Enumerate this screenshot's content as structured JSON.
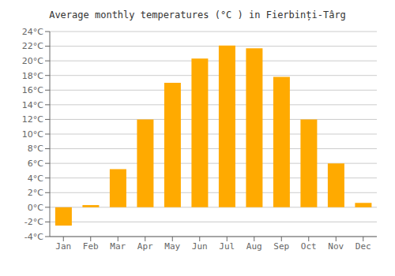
{
  "chart_data": {
    "type": "bar",
    "title": "Average monthly temperatures (°C ) in Fierbinți-Târg",
    "categories": [
      "Jan",
      "Feb",
      "Mar",
      "Apr",
      "May",
      "Jun",
      "Jul",
      "Aug",
      "Sep",
      "Oct",
      "Nov",
      "Dec"
    ],
    "values": [
      -2.5,
      0.3,
      5.2,
      12.0,
      17.0,
      20.3,
      22.1,
      21.7,
      17.8,
      12.0,
      6.0,
      0.6
    ],
    "color": "#FFAA00",
    "ylim": [
      -4,
      24
    ],
    "yticks": [
      {
        "value": -4,
        "label": "-4°C"
      },
      {
        "value": -2,
        "label": "-2°C"
      },
      {
        "value": 0,
        "label": "0°C"
      },
      {
        "value": 2,
        "label": "2°C"
      },
      {
        "value": 4,
        "label": "4°C"
      },
      {
        "value": 6,
        "label": "6°C"
      },
      {
        "value": 8,
        "label": "8°C"
      },
      {
        "value": 10,
        "label": "10°C"
      },
      {
        "value": 12,
        "label": "12°C"
      },
      {
        "value": 14,
        "label": "14°C"
      },
      {
        "value": 16,
        "label": "16°C"
      },
      {
        "value": 18,
        "label": "18°C"
      },
      {
        "value": 20,
        "label": "20°C"
      },
      {
        "value": 22,
        "label": "22°C"
      },
      {
        "value": 24,
        "label": "24°C"
      }
    ],
    "grid": true
  }
}
